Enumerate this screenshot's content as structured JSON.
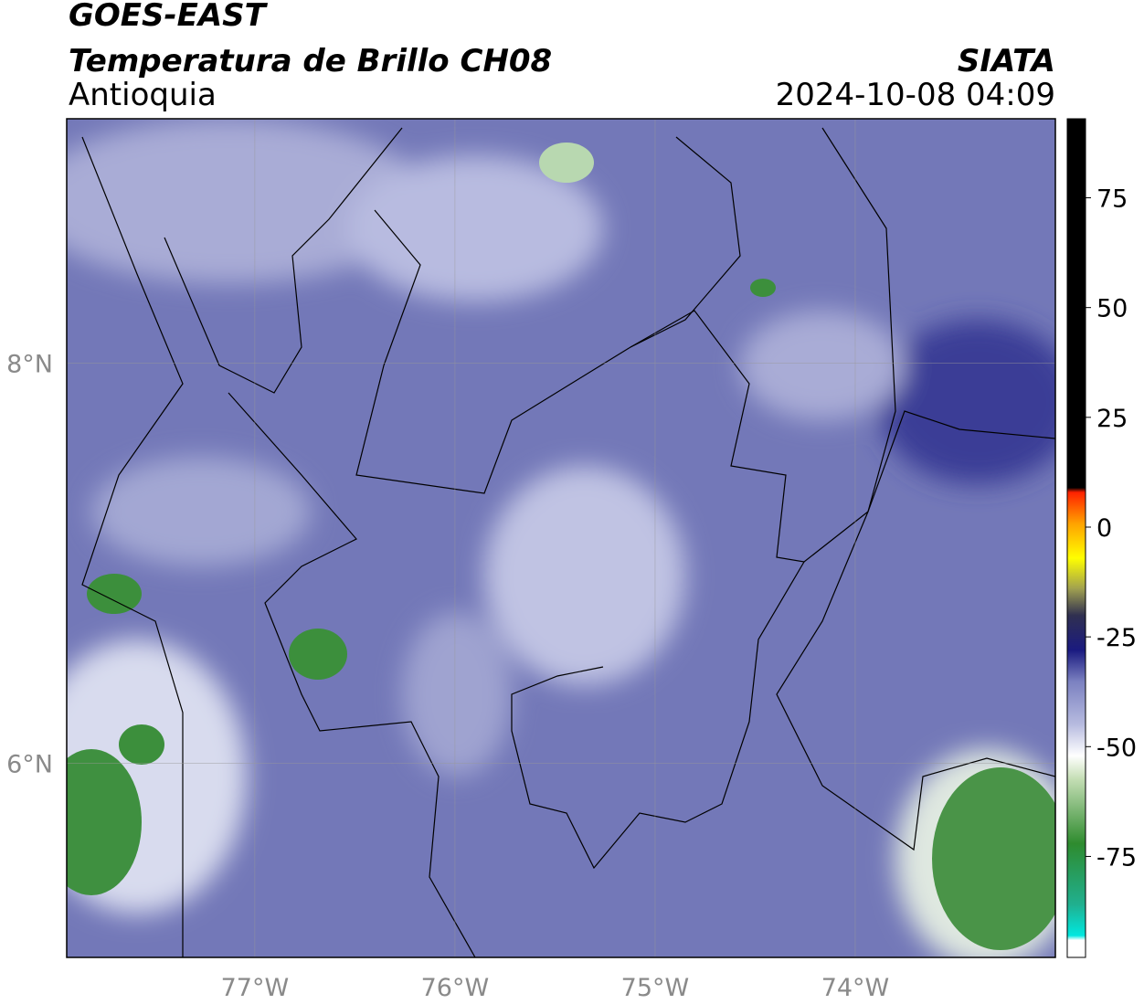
{
  "header": {
    "title": "GOES-EAST",
    "subtitle": "Temperatura de Brillo CH08",
    "region": "Antioquia",
    "source": "SIATA",
    "datetime": "2024-10-08 04:09"
  },
  "map": {
    "xlim": [
      -77.94,
      -73.0
    ],
    "ylim": [
      5.03,
      9.22
    ],
    "xticks": [
      {
        "value": -77,
        "label": "77°W"
      },
      {
        "value": -76,
        "label": "76°W"
      },
      {
        "value": -75,
        "label": "75°W"
      },
      {
        "value": -74,
        "label": "74°W"
      }
    ],
    "yticks": [
      {
        "value": 6,
        "label": "6°N"
      },
      {
        "value": 8,
        "label": "8°N"
      }
    ],
    "grid": true
  },
  "colorbar": {
    "lim": [
      -98,
      93
    ],
    "ticks": [
      -75,
      -50,
      -25,
      0,
      25,
      50,
      75
    ],
    "stops": [
      {
        "value": -98,
        "color": "#ffffff"
      },
      {
        "value": -94,
        "color": "#ffffff"
      },
      {
        "value": -93,
        "color": "#00e8e0"
      },
      {
        "value": -86,
        "color": "#20b090"
      },
      {
        "value": -72,
        "color": "#2e8b2e"
      },
      {
        "value": -57,
        "color": "#c8e0b8"
      },
      {
        "value": -52,
        "color": "#ffffff"
      },
      {
        "value": -45,
        "color": "#b8bce0"
      },
      {
        "value": -35,
        "color": "#7a80c0"
      },
      {
        "value": -28,
        "color": "#1a1a80"
      },
      {
        "value": -20,
        "color": "#303050"
      },
      {
        "value": -14,
        "color": "#a0a050"
      },
      {
        "value": -7,
        "color": "#ffff00"
      },
      {
        "value": 1,
        "color": "#ffa000"
      },
      {
        "value": 8,
        "color": "#ff2000"
      },
      {
        "value": 9,
        "color": "#000000"
      },
      {
        "value": 93,
        "color": "#000000"
      }
    ]
  }
}
